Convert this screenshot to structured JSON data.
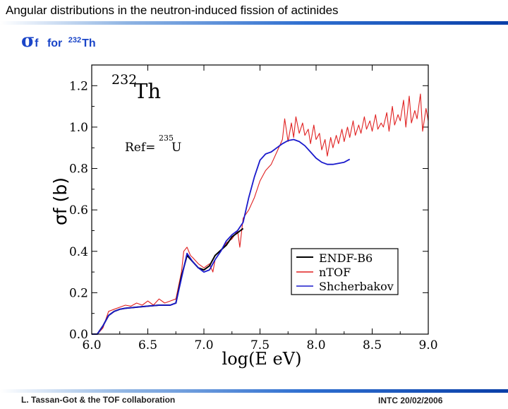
{
  "slide": {
    "title": "Angular distributions in the neutron-induced fission of actinides",
    "subtitle": {
      "sigma": "σ",
      "sub": "f",
      "for_text": "for",
      "mass": "232",
      "element": "Th"
    }
  },
  "footer": {
    "left": "L. Tassan-Got & the TOF collaboration",
    "right": "INTC 20/02/2006"
  },
  "colors": {
    "endf": "#000000",
    "ntof": "#e02020",
    "shch": "#1a1acc",
    "rule": "#2f6fd0",
    "subtitle": "#1a45c8"
  },
  "chart_data": {
    "type": "line",
    "title": "",
    "xlabel": "log(E eV)",
    "ylabel": "σf (b)",
    "xlim": [
      6.0,
      9.0
    ],
    "ylim": [
      0.0,
      1.3
    ],
    "xticks": [
      6.0,
      6.5,
      7.0,
      7.5,
      8.0,
      8.5,
      9.0
    ],
    "yticks": [
      0.0,
      0.2,
      0.4,
      0.6,
      0.8,
      1.0,
      1.2
    ],
    "xtick_labels": [
      "6.0",
      "6.5",
      "7.0",
      "7.5",
      "8.0",
      "8.5",
      "9.0"
    ],
    "ytick_labels": [
      "0.0",
      "0.2",
      "0.4",
      "0.6",
      "0.8",
      "1.0",
      "1.2"
    ],
    "annotations": {
      "isotope_mass": "232",
      "isotope_symbol": "Th",
      "ref_prefix": "Ref=",
      "ref_mass": "235",
      "ref_symbol": "U"
    },
    "legend_position": "bottom-right",
    "series": [
      {
        "name": "ENDF-B6",
        "color": "#000000",
        "x": [
          6.0,
          6.05,
          6.1,
          6.15,
          6.2,
          6.25,
          6.3,
          6.4,
          6.5,
          6.6,
          6.7,
          6.75,
          6.8,
          6.85,
          6.9,
          6.95,
          7.0,
          7.05,
          7.1,
          7.2,
          7.25,
          7.3,
          7.35
        ],
        "y": [
          0.0,
          0.0,
          0.04,
          0.09,
          0.11,
          0.12,
          0.125,
          0.13,
          0.135,
          0.14,
          0.14,
          0.15,
          0.28,
          0.38,
          0.35,
          0.32,
          0.31,
          0.33,
          0.38,
          0.43,
          0.47,
          0.49,
          0.51
        ]
      },
      {
        "name": "nTOF",
        "color": "#e02020",
        "x": [
          6.0,
          6.05,
          6.1,
          6.15,
          6.2,
          6.25,
          6.3,
          6.35,
          6.4,
          6.45,
          6.5,
          6.55,
          6.6,
          6.65,
          6.7,
          6.75,
          6.8,
          6.82,
          6.85,
          6.88,
          6.9,
          6.95,
          7.0,
          7.05,
          7.08,
          7.1,
          7.15,
          7.2,
          7.25,
          7.3,
          7.32,
          7.35,
          7.4,
          7.45,
          7.5,
          7.55,
          7.6,
          7.65,
          7.7,
          7.72,
          7.75,
          7.78,
          7.8,
          7.82,
          7.85,
          7.88,
          7.9,
          7.93,
          7.95,
          7.98,
          8.0,
          8.03,
          8.05,
          8.08,
          8.1,
          8.13,
          8.15,
          8.18,
          8.2,
          8.23,
          8.25,
          8.28,
          8.3,
          8.33,
          8.35,
          8.38,
          8.4,
          8.43,
          8.45,
          8.48,
          8.5,
          8.53,
          8.55,
          8.58,
          8.6,
          8.63,
          8.65,
          8.68,
          8.7,
          8.73,
          8.75,
          8.78,
          8.8,
          8.83,
          8.85,
          8.88,
          8.9,
          8.93,
          8.95,
          8.98,
          9.0
        ],
        "y": [
          0.0,
          0.0,
          0.03,
          0.11,
          0.12,
          0.13,
          0.14,
          0.135,
          0.15,
          0.14,
          0.16,
          0.14,
          0.17,
          0.15,
          0.16,
          0.17,
          0.3,
          0.4,
          0.42,
          0.38,
          0.37,
          0.34,
          0.32,
          0.34,
          0.3,
          0.36,
          0.4,
          0.44,
          0.46,
          0.5,
          0.42,
          0.56,
          0.6,
          0.66,
          0.74,
          0.79,
          0.82,
          0.88,
          0.94,
          1.04,
          0.93,
          1.02,
          0.95,
          1.05,
          0.97,
          1.02,
          0.96,
          0.99,
          0.92,
          1.01,
          0.94,
          0.97,
          0.89,
          0.94,
          0.86,
          0.95,
          0.9,
          0.96,
          0.92,
          0.99,
          0.93,
          1.0,
          0.95,
          1.03,
          0.96,
          1.01,
          0.97,
          1.05,
          0.99,
          1.03,
          0.98,
          1.06,
          0.99,
          1.02,
          1.0,
          1.07,
          0.98,
          1.1,
          1.01,
          1.06,
          1.03,
          1.13,
          1.0,
          1.15,
          1.02,
          1.08,
          1.04,
          1.16,
          0.98,
          1.09,
          1.03
        ]
      },
      {
        "name": "Shcherbakov",
        "color": "#1a1acc",
        "x": [
          6.0,
          6.05,
          6.1,
          6.15,
          6.2,
          6.25,
          6.3,
          6.4,
          6.5,
          6.6,
          6.7,
          6.75,
          6.8,
          6.85,
          6.9,
          6.95,
          7.0,
          7.05,
          7.1,
          7.15,
          7.2,
          7.25,
          7.3,
          7.35,
          7.4,
          7.45,
          7.5,
          7.55,
          7.6,
          7.65,
          7.7,
          7.75,
          7.8,
          7.85,
          7.9,
          7.95,
          8.0,
          8.05,
          8.1,
          8.15,
          8.2,
          8.25,
          8.3
        ],
        "y": [
          0.0,
          0.0,
          0.04,
          0.09,
          0.11,
          0.12,
          0.125,
          0.13,
          0.135,
          0.14,
          0.14,
          0.15,
          0.27,
          0.39,
          0.35,
          0.32,
          0.3,
          0.31,
          0.36,
          0.4,
          0.45,
          0.48,
          0.5,
          0.54,
          0.66,
          0.76,
          0.84,
          0.87,
          0.88,
          0.9,
          0.92,
          0.935,
          0.94,
          0.93,
          0.91,
          0.88,
          0.85,
          0.83,
          0.82,
          0.82,
          0.825,
          0.83,
          0.845
        ]
      }
    ]
  }
}
